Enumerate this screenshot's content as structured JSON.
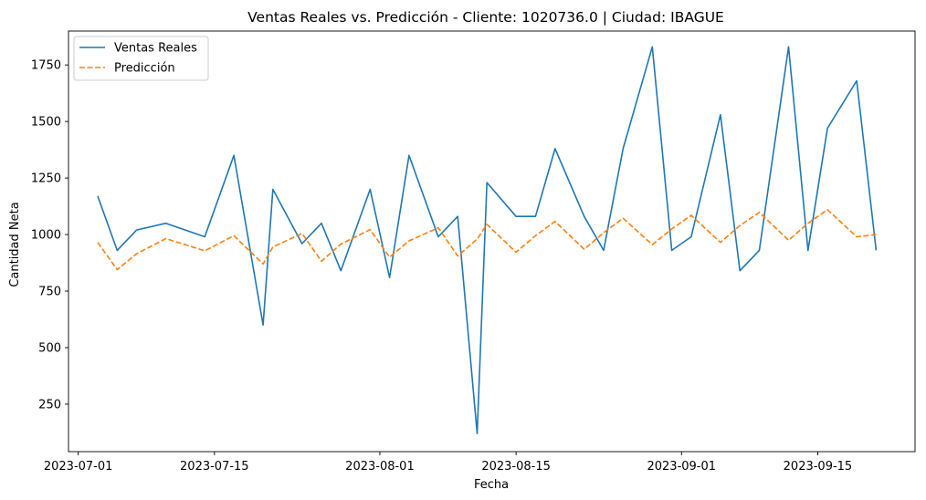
{
  "chart_data": {
    "type": "line",
    "title": "Ventas Reales vs. Predicción - Cliente: 1020736.0 | Ciudad: IBAGUE",
    "xlabel": "Fecha",
    "ylabel": "Cantidad Neta",
    "x_axis_type": "date",
    "xlim": [
      "2023-06-30",
      "2023-09-25"
    ],
    "ylim": [
      40,
      1900
    ],
    "xticks": [
      "2023-07-01",
      "2023-07-15",
      "2023-08-01",
      "2023-08-15",
      "2023-09-01",
      "2023-09-15"
    ],
    "yticks": [
      250,
      500,
      750,
      1000,
      1250,
      1500,
      1750
    ],
    "grid": false,
    "legend_position": "top-left",
    "x": [
      "2023-07-03",
      "2023-07-05",
      "2023-07-07",
      "2023-07-10",
      "2023-07-14",
      "2023-07-17",
      "2023-07-20",
      "2023-07-21",
      "2023-07-24",
      "2023-07-26",
      "2023-07-28",
      "2023-07-31",
      "2023-08-02",
      "2023-08-04",
      "2023-08-07",
      "2023-08-09",
      "2023-08-11",
      "2023-08-12",
      "2023-08-15",
      "2023-08-17",
      "2023-08-19",
      "2023-08-22",
      "2023-08-24",
      "2023-08-26",
      "2023-08-29",
      "2023-08-31",
      "2023-09-02",
      "2023-09-05",
      "2023-09-07",
      "2023-09-09",
      "2023-09-12",
      "2023-09-14",
      "2023-09-16",
      "2023-09-19",
      "2023-09-21"
    ],
    "series": [
      {
        "name": "Ventas Reales",
        "color": "#1f77b4",
        "style": "solid",
        "values": [
          1170,
          930,
          1020,
          1050,
          990,
          1350,
          600,
          1200,
          960,
          1050,
          840,
          1200,
          810,
          1350,
          990,
          1080,
          120,
          1230,
          1080,
          1080,
          1380,
          1080,
          930,
          1380,
          1830,
          930,
          990,
          1530,
          840,
          930,
          1830,
          930,
          1470,
          1680,
          930
        ]
      },
      {
        "name": "Predicción",
        "color": "#ff7f0e",
        "style": "dashed",
        "values": [
          965,
          845,
          915,
          982,
          928,
          995,
          870,
          945,
          1005,
          882,
          958,
          1022,
          900,
          972,
          1030,
          905,
          980,
          1045,
          922,
          995,
          1058,
          935,
          1008,
          1072,
          955,
          1025,
          1085,
          965,
          1040,
          1098,
          975,
          1050,
          1110,
          990,
          1000
        ]
      }
    ]
  }
}
